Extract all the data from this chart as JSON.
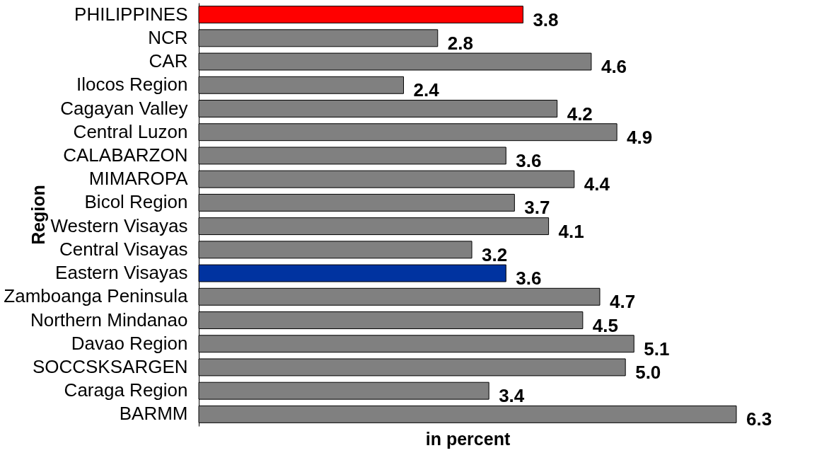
{
  "chart_data": {
    "type": "bar",
    "orientation": "horizontal",
    "ylabel": "Region",
    "xlabel": "in percent",
    "categories": [
      "PHILIPPINES",
      "NCR",
      "CAR",
      "Ilocos Region",
      "Cagayan Valley",
      "Central Luzon",
      "CALABARZON",
      "MIMAROPA",
      "Bicol Region",
      "Western Visayas",
      "Central Visayas",
      "Eastern Visayas",
      "Zamboanga Peninsula",
      "Northern Mindanao",
      "Davao Region",
      "SOCCSKSARGEN",
      "Caraga Region",
      "BARMM"
    ],
    "values": [
      3.8,
      2.8,
      4.6,
      2.4,
      4.2,
      4.9,
      3.6,
      4.4,
      3.7,
      4.1,
      3.2,
      3.6,
      4.7,
      4.5,
      5.1,
      5.0,
      3.4,
      6.3
    ],
    "value_labels": [
      "3.8",
      "2.8",
      "4.6",
      "2.4",
      "4.2",
      "4.9",
      "3.6",
      "4.4",
      "3.7",
      "4.1",
      "3.2",
      "3.6",
      "4.7",
      "4.5",
      "5.1",
      "5.0",
      "3.4",
      "6.3"
    ],
    "colors": [
      "#ff0000",
      "#808080",
      "#808080",
      "#808080",
      "#808080",
      "#808080",
      "#808080",
      "#808080",
      "#808080",
      "#808080",
      "#808080",
      "#0033a0",
      "#808080",
      "#808080",
      "#808080",
      "#808080",
      "#808080",
      "#808080"
    ],
    "grid": false
  }
}
